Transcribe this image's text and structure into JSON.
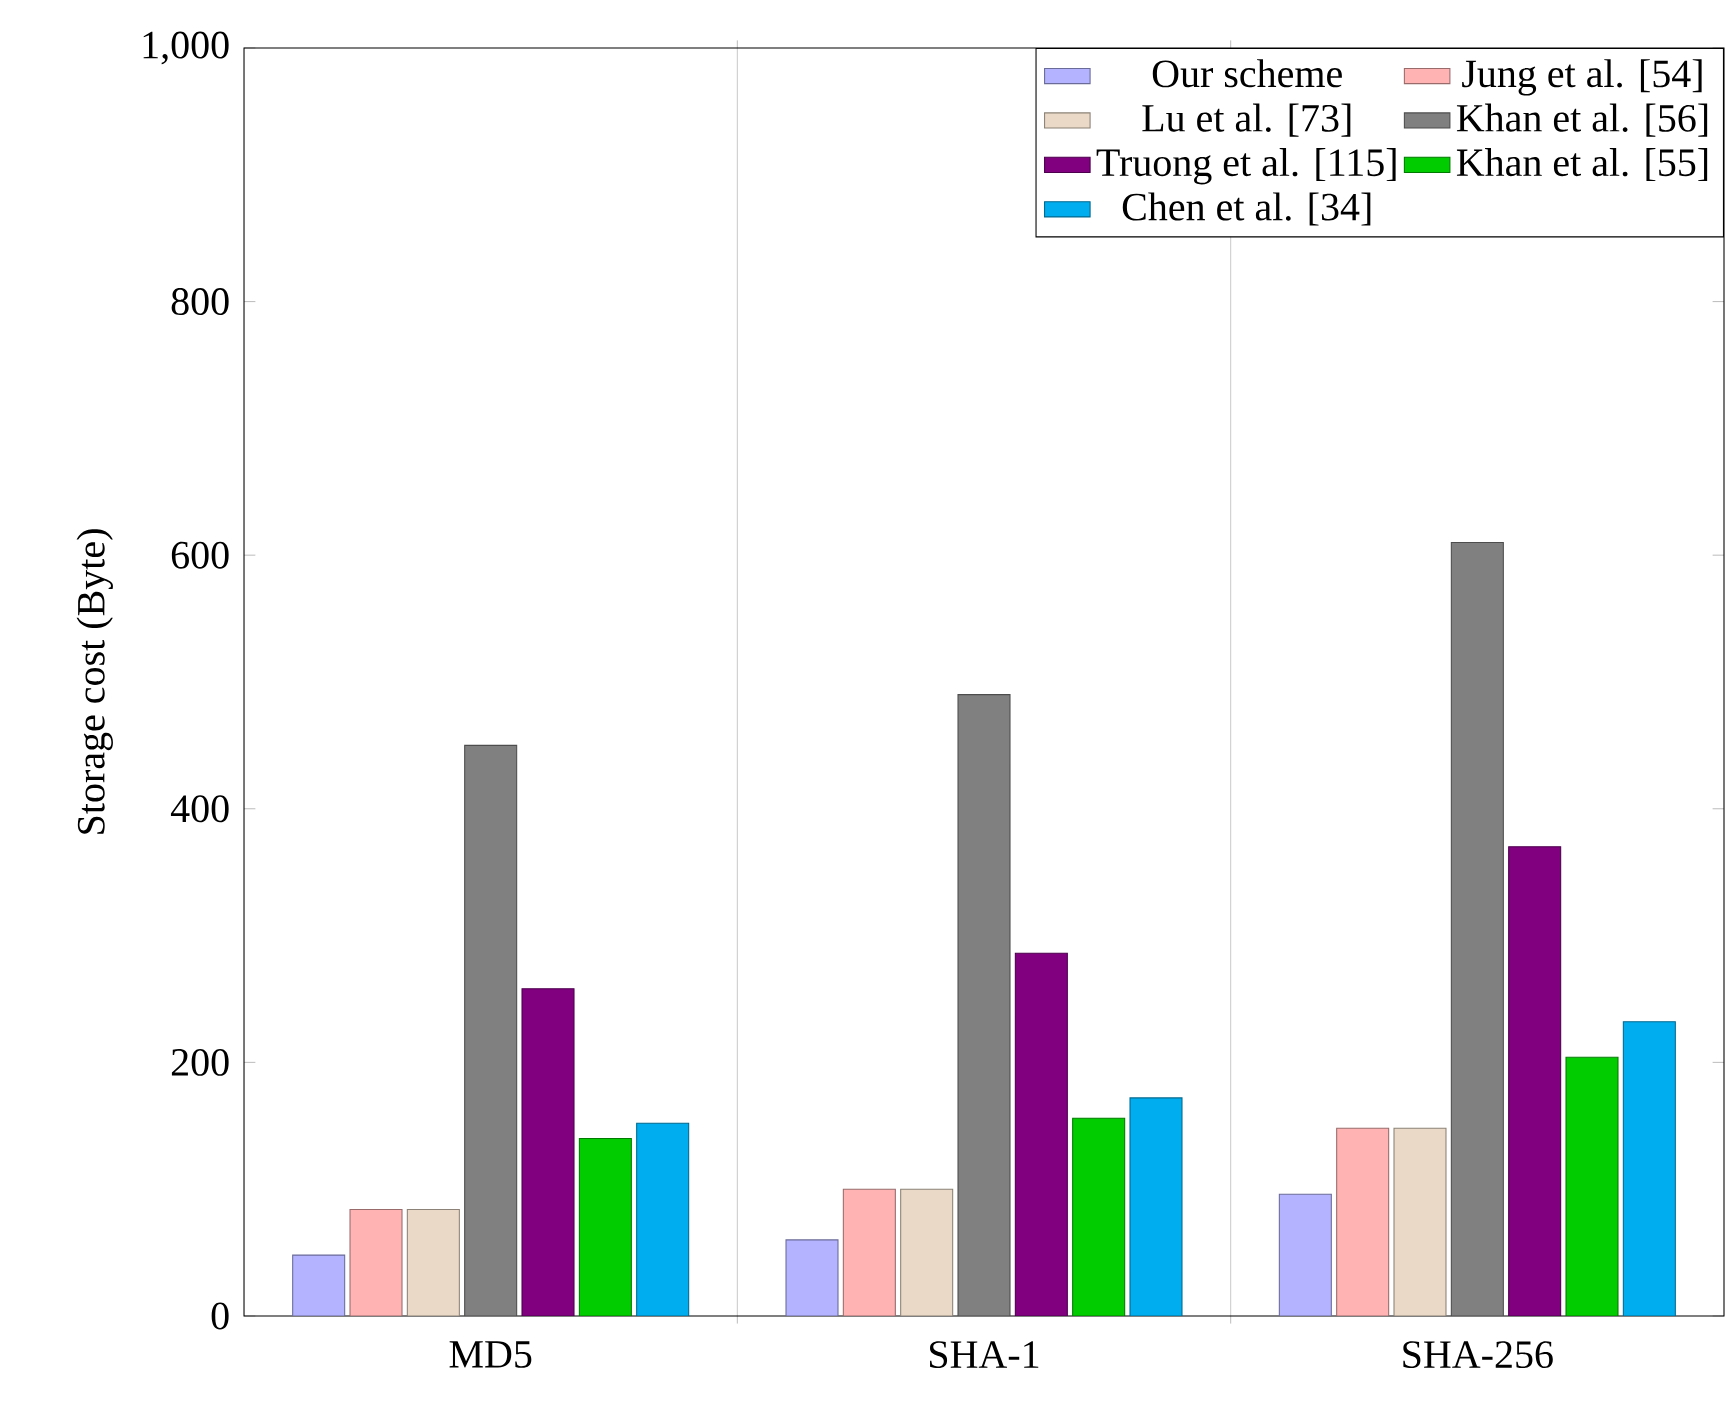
{
  "chart_data": {
    "type": "bar",
    "ylabel": "Storage cost (Byte)",
    "categories": [
      "MD5",
      "SHA-1",
      "SHA-256"
    ],
    "series": [
      {
        "name": "Our scheme",
        "color": "#b3b3ff",
        "values": [
          48,
          60,
          96
        ]
      },
      {
        "name": "Jung et al. [54]",
        "color": "#ffb3b3",
        "values": [
          84,
          100,
          148
        ]
      },
      {
        "name": "Lu et al. [73]",
        "color": "#ead9c6",
        "values": [
          84,
          100,
          148
        ]
      },
      {
        "name": "Khan et al. [56]",
        "color": "#808080",
        "values": [
          450,
          490,
          610
        ]
      },
      {
        "name": "Truong et al. [115]",
        "color": "#800080",
        "values": [
          258,
          286,
          370
        ]
      },
      {
        "name": "Khan et al. [55]",
        "color": "#00cc00",
        "values": [
          140,
          156,
          204
        ]
      },
      {
        "name": "Chen et al. [34]",
        "color": "#00aeef",
        "values": [
          152,
          172,
          232
        ]
      }
    ],
    "ylim": [
      0,
      1000
    ],
    "yticks": [
      0,
      200,
      400,
      600,
      800,
      {
        "value": 1000,
        "label": "1,000"
      }
    ],
    "grid": "x",
    "legend": "top right"
  }
}
